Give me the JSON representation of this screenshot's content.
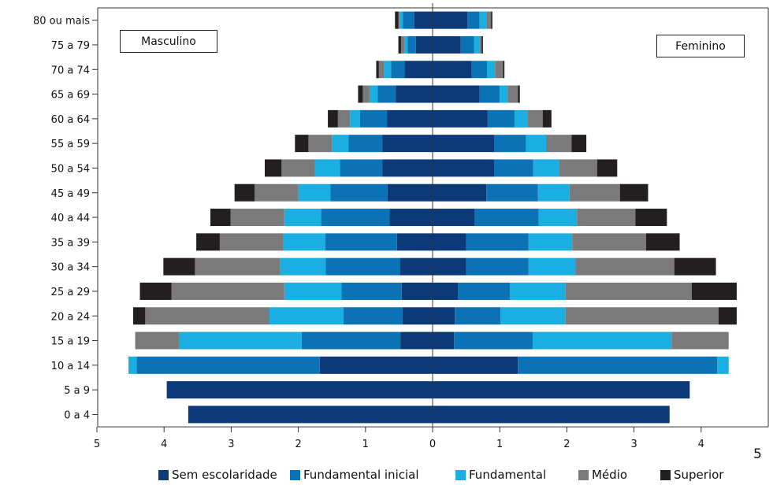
{
  "chart_data": {
    "type": "bar",
    "orientation": "horizontal-pyramid",
    "left_group": "Masculino",
    "right_group": "Feminino",
    "categories": [
      "80 ou mais",
      "75 a 79",
      "70 a 74",
      "65 a 69",
      "60 a 64",
      "55 a 59",
      "50 a 54",
      "45 a 49",
      "40 a 44",
      "35 a 39",
      "30 a 34",
      "25 a 29",
      "20 a 24",
      "15 a 19",
      "10 a 14",
      "5 a 9",
      "0 a 4"
    ],
    "xlim": [
      -5,
      5
    ],
    "x_tick_values": [
      -5,
      -4,
      -3,
      -2,
      -1,
      0,
      1,
      2,
      3,
      4
    ],
    "x_tick_labels": [
      "5",
      "4",
      "3",
      "2",
      "1",
      "0",
      "1",
      "2",
      "3",
      "4"
    ],
    "x_stray_label": "5",
    "series": [
      {
        "name": "Sem escolaridade",
        "color": "#0c3a78",
        "male": [
          0.27,
          0.25,
          0.42,
          0.55,
          0.68,
          0.75,
          0.75,
          0.67,
          0.64,
          0.53,
          0.49,
          0.46,
          0.45,
          0.48,
          1.68,
          3.96,
          3.64
        ],
        "female": [
          0.52,
          0.42,
          0.58,
          0.7,
          0.82,
          0.92,
          0.92,
          0.8,
          0.63,
          0.5,
          0.5,
          0.38,
          0.33,
          0.32,
          1.27,
          3.83,
          3.53
        ]
      },
      {
        "name": "Fundamental inicial",
        "color": "#0b73b5",
        "male": [
          0.17,
          0.12,
          0.2,
          0.27,
          0.4,
          0.5,
          0.63,
          0.85,
          1.02,
          1.07,
          1.1,
          0.9,
          0.88,
          1.47,
          2.73,
          0,
          0
        ],
        "female": [
          0.18,
          0.2,
          0.23,
          0.3,
          0.4,
          0.47,
          0.58,
          0.77,
          0.95,
          0.93,
          0.93,
          0.77,
          0.68,
          1.17,
          2.97,
          0,
          0
        ]
      },
      {
        "name": "Fundamental",
        "color": "#1aaee3",
        "male": [
          0.05,
          0.05,
          0.1,
          0.12,
          0.15,
          0.25,
          0.37,
          0.48,
          0.55,
          0.62,
          0.68,
          0.85,
          1.1,
          1.83,
          0.12,
          0,
          0
        ],
        "female": [
          0.1,
          0.08,
          0.12,
          0.12,
          0.2,
          0.3,
          0.38,
          0.47,
          0.57,
          0.65,
          0.7,
          0.83,
          0.97,
          2.07,
          0.17,
          0,
          0
        ]
      },
      {
        "name": "Médio",
        "color": "#7a7a7a",
        "male": [
          0.02,
          0.05,
          0.08,
          0.1,
          0.18,
          0.35,
          0.5,
          0.65,
          0.8,
          0.95,
          1.27,
          1.68,
          1.85,
          0.65,
          0,
          0,
          0
        ],
        "female": [
          0.07,
          0.03,
          0.12,
          0.15,
          0.22,
          0.38,
          0.57,
          0.75,
          0.87,
          1.1,
          1.47,
          1.88,
          2.28,
          0.85,
          0,
          0,
          0
        ]
      },
      {
        "name": "Superior",
        "color": "#231f20",
        "male": [
          0.05,
          0.04,
          0.04,
          0.07,
          0.15,
          0.2,
          0.25,
          0.3,
          0.3,
          0.35,
          0.47,
          0.47,
          0.18,
          0,
          0,
          0,
          0
        ],
        "female": [
          0.02,
          0.02,
          0.02,
          0.03,
          0.13,
          0.22,
          0.3,
          0.42,
          0.47,
          0.5,
          0.62,
          0.67,
          0.27,
          0,
          0,
          0,
          0
        ]
      }
    ]
  }
}
